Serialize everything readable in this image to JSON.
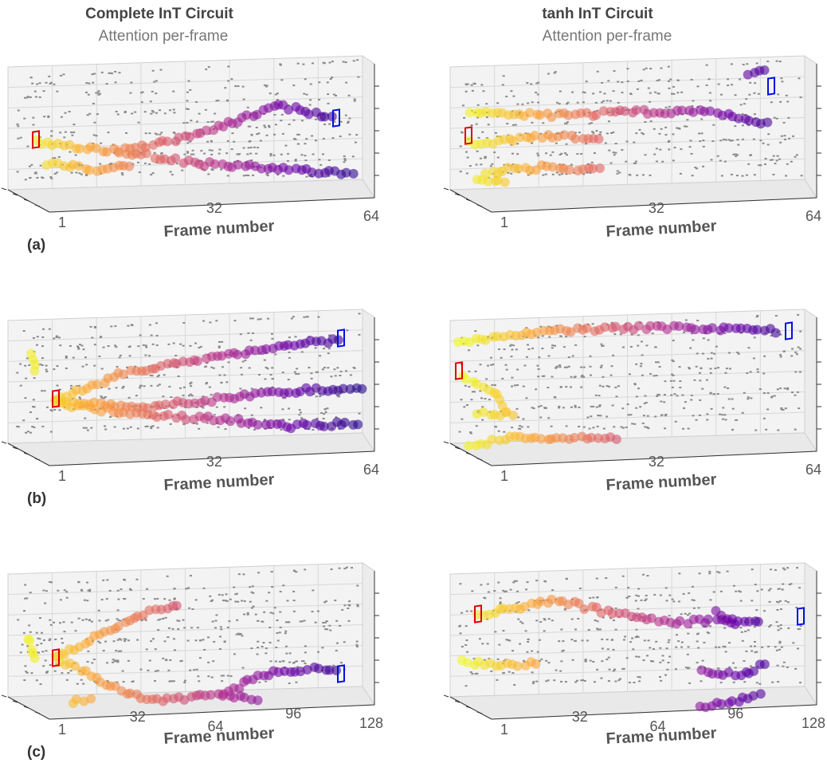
{
  "columns": [
    {
      "title": "Complete InT Circuit",
      "subtitle": "Attention per-frame"
    },
    {
      "title": "tanh InT Circuit",
      "subtitle": "Attention per-frame"
    }
  ],
  "rows": [
    {
      "label": "(a)",
      "xticks": [
        1,
        32,
        64
      ]
    },
    {
      "label": "(b)",
      "xticks": [
        1,
        32,
        64
      ]
    },
    {
      "label": "(c)",
      "xticks": [
        1,
        32,
        64,
        96,
        128
      ]
    }
  ],
  "xlabel": "Frame number"
}
